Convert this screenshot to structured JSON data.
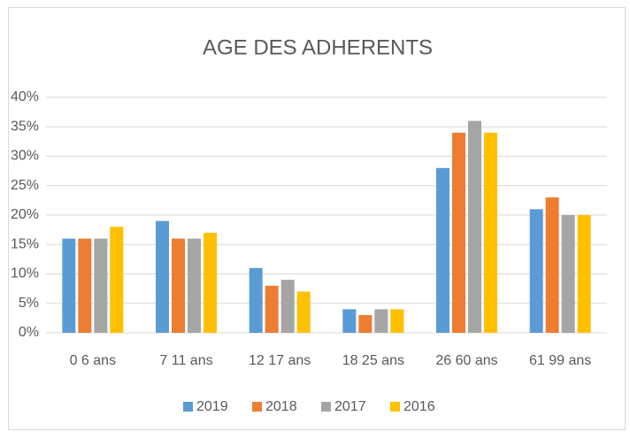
{
  "chart_data": {
    "type": "bar",
    "title": "AGE DES ADHERENTS",
    "categories": [
      "0 6 ans",
      "7 11 ans",
      "12 17 ans",
      "18 25 ans",
      "26 60 ans",
      "61 99 ans"
    ],
    "series": [
      {
        "name": "2019",
        "color": "#5b9bd5",
        "values": [
          16,
          19,
          11,
          4,
          28,
          21
        ]
      },
      {
        "name": "2018",
        "color": "#ed7d31",
        "values": [
          16,
          16,
          8,
          3,
          34,
          23
        ]
      },
      {
        "name": "2017",
        "color": "#a5a5a5",
        "values": [
          16,
          16,
          9,
          4,
          36,
          20
        ]
      },
      {
        "name": "2016",
        "color": "#ffc000",
        "values": [
          18,
          17,
          7,
          4,
          34,
          20
        ]
      }
    ],
    "ylim": [
      0,
      40
    ],
    "yticks": [
      {
        "value": 0,
        "label": "0%"
      },
      {
        "value": 5,
        "label": "5%"
      },
      {
        "value": 10,
        "label": "10%"
      },
      {
        "value": 15,
        "label": "15%"
      },
      {
        "value": 20,
        "label": "20%"
      },
      {
        "value": 25,
        "label": "25%"
      },
      {
        "value": 30,
        "label": "30%"
      },
      {
        "value": 35,
        "label": "35%"
      },
      {
        "value": 40,
        "label": "40%"
      }
    ],
    "grid": true,
    "legend": "bottom"
  }
}
